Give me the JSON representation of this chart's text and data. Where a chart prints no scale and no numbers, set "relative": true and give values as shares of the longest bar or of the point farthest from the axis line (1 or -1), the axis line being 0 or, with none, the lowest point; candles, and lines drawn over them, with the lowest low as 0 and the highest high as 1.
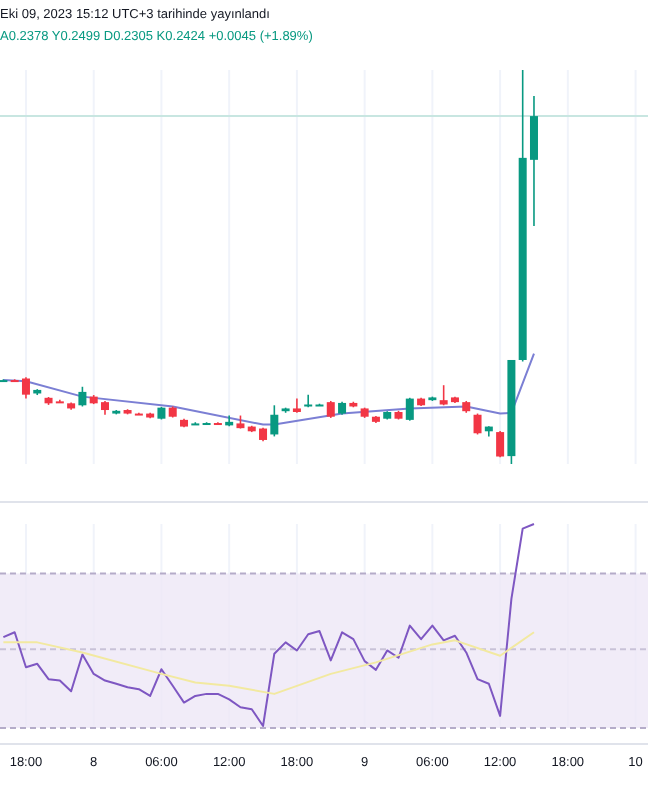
{
  "chart_data": [
    {
      "type": "candlestick",
      "title": "Eki 09, 2023 15:12 UTC+3 tarihinde yayınlandı",
      "annotations": [
        "A0.2378 Y0.2499 D0.2305 K0.2424 +0.0045 (+1.89%)"
      ],
      "relative": true,
      "grid": "x",
      "tick_labels": false,
      "xlim": [
        "2023-10-07T15:42",
        "2023-10-10T01:06"
      ],
      "xticks": [
        {
          "value": "2023-10-07T18:00",
          "label": null
        },
        {
          "value": "2023-10-08T00:00",
          "label": null
        },
        {
          "value": "2023-10-08T06:00",
          "label": null
        },
        {
          "value": "2023-10-08T12:00",
          "label": null
        },
        {
          "value": "2023-10-08T18:00",
          "label": null
        },
        {
          "value": "2023-10-09T00:00",
          "label": null
        },
        {
          "value": "2023-10-09T06:00",
          "label": null
        },
        {
          "value": "2023-10-09T12:00",
          "label": null
        },
        {
          "value": "2023-10-09T18:00",
          "label": null
        },
        {
          "value": "2023-10-10T00:00",
          "label": null
        }
      ],
      "x": [
        "2023-10-07T16:00",
        "2023-10-07T17:00",
        "2023-10-07T18:00",
        "2023-10-07T19:00",
        "2023-10-07T20:00",
        "2023-10-07T21:00",
        "2023-10-07T22:00",
        "2023-10-07T23:00",
        "2023-10-08T00:00",
        "2023-10-08T01:00",
        "2023-10-08T02:00",
        "2023-10-08T03:00",
        "2023-10-08T04:00",
        "2023-10-08T05:00",
        "2023-10-08T06:00",
        "2023-10-08T07:00",
        "2023-10-08T08:00",
        "2023-10-08T09:00",
        "2023-10-08T10:00",
        "2023-10-08T11:00",
        "2023-10-08T12:00",
        "2023-10-08T13:00",
        "2023-10-08T14:00",
        "2023-10-08T15:00",
        "2023-10-08T16:00",
        "2023-10-08T17:00",
        "2023-10-08T18:00",
        "2023-10-08T19:00",
        "2023-10-08T20:00",
        "2023-10-08T21:00",
        "2023-10-08T22:00",
        "2023-10-08T23:00",
        "2023-10-09T00:00",
        "2023-10-09T01:00",
        "2023-10-09T02:00",
        "2023-10-09T03:00",
        "2023-10-09T04:00",
        "2023-10-09T05:00",
        "2023-10-09T06:00",
        "2023-10-09T07:00",
        "2023-10-09T08:00",
        "2023-10-09T09:00",
        "2023-10-09T10:00",
        "2023-10-09T11:00",
        "2023-10-09T12:00",
        "2023-10-09T13:00",
        "2023-10-09T14:00",
        "2023-10-09T15:00"
      ],
      "ohlc": [
        [
          0.213,
          0.215,
          0.211,
          0.213
        ],
        [
          0.213,
          0.215,
          0.211,
          0.212
        ],
        [
          0.217,
          0.22,
          0.166,
          0.176
        ],
        [
          0.179,
          0.19,
          0.175,
          0.188
        ],
        [
          0.168,
          0.17,
          0.15,
          0.154
        ],
        [
          0.159,
          0.163,
          0.155,
          0.158
        ],
        [
          0.154,
          0.156,
          0.138,
          0.141
        ],
        [
          0.149,
          0.196,
          0.146,
          0.183
        ],
        [
          0.171,
          0.175,
          0.152,
          0.154
        ],
        [
          0.157,
          0.16,
          0.125,
          0.137
        ],
        [
          0.128,
          0.137,
          0.126,
          0.135
        ],
        [
          0.137,
          0.139,
          0.126,
          0.128
        ],
        [
          0.128,
          0.13,
          0.126,
          0.128
        ],
        [
          0.128,
          0.13,
          0.116,
          0.118
        ],
        [
          0.115,
          0.145,
          0.113,
          0.143
        ],
        [
          0.143,
          0.146,
          0.118,
          0.12
        ],
        [
          0.112,
          0.115,
          0.093,
          0.095
        ],
        [
          0.103,
          0.106,
          0.1,
          0.103
        ],
        [
          0.103,
          0.106,
          0.101,
          0.104
        ],
        [
          0.104,
          0.106,
          0.1,
          0.103
        ],
        [
          0.098,
          0.123,
          0.096,
          0.107
        ],
        [
          0.103,
          0.123,
          0.09,
          0.091
        ],
        [
          0.095,
          0.097,
          0.081,
          0.083
        ],
        [
          0.09,
          0.092,
          0.058,
          0.061
        ],
        [
          0.075,
          0.149,
          0.07,
          0.125
        ],
        [
          0.134,
          0.143,
          0.13,
          0.141
        ],
        [
          0.141,
          0.166,
          0.13,
          0.132
        ],
        [
          0.146,
          0.176,
          0.144,
          0.151
        ],
        [
          0.151,
          0.153,
          0.148,
          0.151
        ],
        [
          0.157,
          0.16,
          0.117,
          0.12
        ],
        [
          0.128,
          0.158,
          0.125,
          0.155
        ],
        [
          0.155,
          0.158,
          0.144,
          0.146
        ],
        [
          0.141,
          0.143,
          0.117,
          0.12
        ],
        [
          0.12,
          0.122,
          0.104,
          0.107
        ],
        [
          0.115,
          0.134,
          0.113,
          0.132
        ],
        [
          0.132,
          0.135,
          0.113,
          0.115
        ],
        [
          0.112,
          0.168,
          0.11,
          0.166
        ],
        [
          0.166,
          0.168,
          0.147,
          0.149
        ],
        [
          0.162,
          0.171,
          0.16,
          0.169
        ],
        [
          0.162,
          0.2,
          0.149,
          0.151
        ],
        [
          0.169,
          0.171,
          0.155,
          0.157
        ],
        [
          0.157,
          0.16,
          0.13,
          0.134
        ],
        [
          0.125,
          0.128,
          0.075,
          0.078
        ],
        [
          0.083,
          0.096,
          0.07,
          0.095
        ],
        [
          0.081,
          0.084,
          0.017,
          0.019
        ],
        [
          0.02,
          0.264,
          0,
          0.264
        ],
        [
          0.264,
          1,
          0.26,
          0.777
        ],
        [
          0.772,
          0.934,
          0.604,
          0.883
        ]
      ],
      "colors": [
        "#089981",
        "#f23645",
        "#f23645",
        "#089981",
        "#f23645",
        "#f23645",
        "#f23645",
        "#089981",
        "#f23645",
        "#f23645",
        "#089981",
        "#f23645",
        "#f23645",
        "#f23645",
        "#089981",
        "#f23645",
        "#f23645",
        "#089981",
        "#089981",
        "#f23645",
        "#089981",
        "#f23645",
        "#f23645",
        "#f23645",
        "#089981",
        "#089981",
        "#f23645",
        "#089981",
        "#089981",
        "#f23645",
        "#089981",
        "#f23645",
        "#f23645",
        "#f23645",
        "#089981",
        "#f23645",
        "#089981",
        "#f23645",
        "#089981",
        "#f23645",
        "#f23645",
        "#f23645",
        "#f23645",
        "#089981",
        "#f23645",
        "#089981",
        "#089981",
        "#089981"
      ],
      "ref_lines": [
        {
          "axis": "y",
          "value": 0.883,
          "color": "#c8e6e1",
          "line_style": "solid"
        }
      ],
      "series": [
        {
          "type": "line",
          "color": "#7b7fd4",
          "x": [
            "2023-10-07T16:00",
            "2023-10-07T18:00",
            "2023-10-07T23:00",
            "2023-10-08T07:00",
            "2023-10-08T15:00",
            "2023-10-08T16:00",
            "2023-10-08T22:00",
            "2023-10-09T04:00",
            "2023-10-09T09:00",
            "2023-10-09T12:00",
            "2023-10-09T13:00",
            "2023-10-09T15:00"
          ],
          "values": [
            0.213,
            0.21,
            0.171,
            0.146,
            0.1,
            0.1,
            0.128,
            0.141,
            0.146,
            0.128,
            0.13,
            0.28
          ]
        }
      ]
    },
    {
      "type": "line",
      "relative": true,
      "grid": "x",
      "tick_labels": "x",
      "xlim": [
        "2023-10-07T15:42",
        "2023-10-10T01:06"
      ],
      "xticks": [
        {
          "value": "2023-10-07T18:00",
          "label": "18:00"
        },
        {
          "value": "2023-10-08T00:00",
          "label": "8"
        },
        {
          "value": "2023-10-08T06:00",
          "label": "06:00"
        },
        {
          "value": "2023-10-08T12:00",
          "label": "12:00"
        },
        {
          "value": "2023-10-08T18:00",
          "label": "18:00"
        },
        {
          "value": "2023-10-09T00:00",
          "label": "9"
        },
        {
          "value": "2023-10-09T06:00",
          "label": "06:00"
        },
        {
          "value": "2023-10-09T12:00",
          "label": "12:00"
        },
        {
          "value": "2023-10-09T18:00",
          "label": "18:00"
        },
        {
          "value": "2023-10-10T00:00",
          "label": "10"
        }
      ],
      "x": [
        "2023-10-07T16:00",
        "2023-10-07T17:00",
        "2023-10-07T18:00",
        "2023-10-07T19:00",
        "2023-10-07T20:00",
        "2023-10-07T21:00",
        "2023-10-07T22:00",
        "2023-10-07T23:00",
        "2023-10-08T00:00",
        "2023-10-08T01:00",
        "2023-10-08T02:00",
        "2023-10-08T03:00",
        "2023-10-08T04:00",
        "2023-10-08T05:00",
        "2023-10-08T06:00",
        "2023-10-08T07:00",
        "2023-10-08T08:00",
        "2023-10-08T09:00",
        "2023-10-08T10:00",
        "2023-10-08T11:00",
        "2023-10-08T12:00",
        "2023-10-08T13:00",
        "2023-10-08T14:00",
        "2023-10-08T15:00",
        "2023-10-08T16:00",
        "2023-10-08T17:00",
        "2023-10-08T18:00",
        "2023-10-08T19:00",
        "2023-10-08T20:00",
        "2023-10-08T21:00",
        "2023-10-08T22:00",
        "2023-10-08T23:00",
        "2023-10-09T00:00",
        "2023-10-09T01:00",
        "2023-10-09T02:00",
        "2023-10-09T03:00",
        "2023-10-09T04:00",
        "2023-10-09T05:00",
        "2023-10-09T06:00",
        "2023-10-09T07:00",
        "2023-10-09T08:00",
        "2023-10-09T09:00",
        "2023-10-09T10:00",
        "2023-10-09T11:00",
        "2023-10-09T12:00",
        "2023-10-09T13:00",
        "2023-10-09T14:00",
        "2023-10-09T15:00"
      ],
      "bands": [
        {
          "axis": "y",
          "from": -0.01,
          "to": 0.755,
          "color": "#ede7f6"
        }
      ],
      "ref_lines": [
        {
          "axis": "y",
          "value": 0.755,
          "color": "#b5acc9",
          "line_style": "dashed"
        },
        {
          "axis": "y",
          "value": 0.38,
          "color": "#c9c2d8",
          "line_style": "dashed"
        },
        {
          "axis": "y",
          "value": -0.01,
          "color": "#b5acc9",
          "line_style": "dashed"
        }
      ],
      "series": [
        {
          "color": "#7e57c2",
          "values": [
            0.44,
            0.464,
            0.291,
            0.308,
            0.232,
            0.225,
            0.172,
            0.354,
            0.258,
            0.225,
            0.209,
            0.192,
            0.182,
            0.149,
            0.281,
            0.199,
            0.116,
            0.149,
            0.159,
            0.159,
            0.132,
            0.093,
            0.083,
            0,
            0.358,
            0.414,
            0.374,
            0.454,
            0.47,
            0.325,
            0.464,
            0.43,
            0.321,
            0.278,
            0.374,
            0.338,
            0.497,
            0.43,
            0.497,
            0.424,
            0.447,
            0.364,
            0.232,
            0.209,
            0.05,
            0.629,
            0.977,
            1
          ]
        },
        {
          "color": "#f2e9a0",
          "x": [
            "2023-10-07T16:00",
            "2023-10-07T19:00",
            "2023-10-07T23:00",
            "2023-10-08T06:00",
            "2023-10-08T09:00",
            "2023-10-08T12:00",
            "2023-10-08T16:00",
            "2023-10-08T21:00",
            "2023-10-09T01:00",
            "2023-10-09T06:00",
            "2023-10-09T08:00",
            "2023-10-09T12:00",
            "2023-10-09T15:00"
          ],
          "values": [
            0.414,
            0.414,
            0.364,
            0.258,
            0.215,
            0.199,
            0.159,
            0.258,
            0.315,
            0.404,
            0.424,
            0.348,
            0.464
          ]
        }
      ]
    }
  ]
}
